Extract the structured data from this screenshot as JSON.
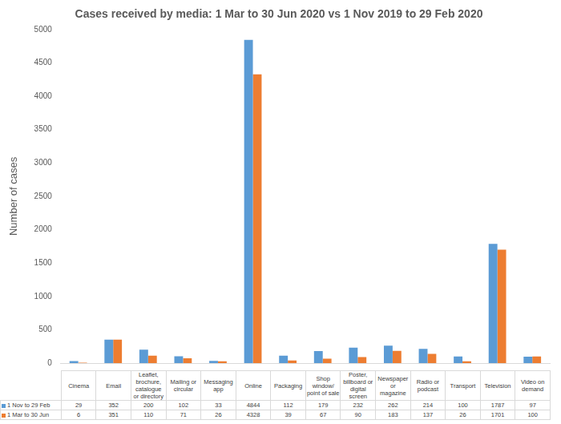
{
  "chart_data": {
    "type": "bar",
    "title": "Cases received by media: 1 Mar to 30 Jun 2020 vs 1 Nov 2019 to 29 Feb 2020",
    "y_label": "Number of cases",
    "categories": [
      "Cinema",
      "Email",
      "Leaflet, brochure, catalogue or directory",
      "Mailing or circular",
      "Messaging app",
      "Online",
      "Packaging",
      "Shop window/ point of sale",
      "Poster, billboard or digital screen",
      "Newspaper or magazine",
      "Radio or podcast",
      "Transport",
      "Television",
      "Video on demand"
    ],
    "series": [
      {
        "name": "1 Nov to 29 Feb",
        "color": "#5b9bd5",
        "values": [
          29,
          352,
          200,
          102,
          33,
          4844,
          112,
          179,
          232,
          262,
          214,
          100,
          1787,
          97
        ]
      },
      {
        "name": "1 Mar to 30 Jun",
        "color": "#ed7d31",
        "values": [
          6,
          351,
          110,
          71,
          26,
          4328,
          39,
          67,
          90,
          183,
          137,
          26,
          1701,
          100
        ]
      }
    ],
    "ylim": [
      0,
      5000
    ],
    "yticks": [
      0,
      500,
      1000,
      1500,
      2000,
      2500,
      3000,
      3500,
      4000,
      4500,
      5000
    ],
    "grid": false
  }
}
